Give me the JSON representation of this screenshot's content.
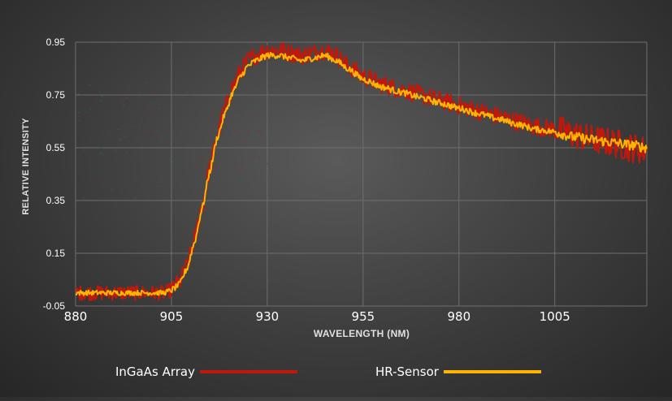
{
  "chart_data": {
    "type": "line",
    "xlabel": "WAVELENGTH (NM)",
    "ylabel": "RELATIVE INTENSITY",
    "xlim": [
      880,
      1029
    ],
    "ylim": [
      -0.05,
      0.95
    ],
    "x_ticks": [
      880,
      905,
      930,
      955,
      980,
      1005
    ],
    "y_ticks": [
      -0.05,
      0.15,
      0.35,
      0.55,
      0.75,
      0.95
    ],
    "y_tick_labels": [
      "-0.05",
      "0.15",
      "0.35",
      "0.55",
      "0.75",
      "0.95"
    ],
    "grid": true,
    "legend_position": "bottom",
    "series": [
      {
        "name": "InGaAs Array",
        "color": "#c0180c",
        "x": [
          880,
          885,
          890,
          895,
          900,
          903,
          905,
          907,
          909,
          911,
          913,
          915,
          917,
          919,
          921,
          923,
          925,
          927,
          930,
          933,
          936,
          939,
          942,
          945,
          948,
          951,
          955,
          960,
          965,
          970,
          975,
          980,
          985,
          990,
          995,
          1000,
          1005,
          1010,
          1015,
          1020,
          1025,
          1029
        ],
        "y": [
          0.0,
          0.0,
          0.0,
          0.0,
          0.0,
          0.0,
          0.01,
          0.04,
          0.1,
          0.2,
          0.33,
          0.47,
          0.6,
          0.7,
          0.78,
          0.84,
          0.88,
          0.9,
          0.92,
          0.92,
          0.91,
          0.9,
          0.91,
          0.92,
          0.9,
          0.86,
          0.82,
          0.79,
          0.77,
          0.75,
          0.73,
          0.71,
          0.69,
          0.67,
          0.65,
          0.63,
          0.62,
          0.6,
          0.58,
          0.57,
          0.55,
          0.54
        ]
      },
      {
        "name": "HR-Sensor",
        "color": "#ffb400",
        "x": [
          880,
          885,
          890,
          895,
          900,
          903,
          905,
          907,
          909,
          911,
          913,
          915,
          917,
          919,
          921,
          923,
          925,
          927,
          930,
          933,
          936,
          939,
          942,
          945,
          948,
          951,
          955,
          960,
          965,
          970,
          975,
          980,
          985,
          990,
          995,
          1000,
          1005,
          1010,
          1015,
          1020,
          1025,
          1029
        ],
        "y": [
          0.0,
          0.0,
          0.0,
          0.0,
          0.0,
          0.0,
          0.01,
          0.03,
          0.09,
          0.19,
          0.32,
          0.46,
          0.59,
          0.68,
          0.76,
          0.82,
          0.86,
          0.88,
          0.9,
          0.9,
          0.89,
          0.88,
          0.89,
          0.9,
          0.88,
          0.85,
          0.81,
          0.78,
          0.76,
          0.74,
          0.72,
          0.7,
          0.68,
          0.66,
          0.64,
          0.62,
          0.61,
          0.59,
          0.58,
          0.57,
          0.56,
          0.55
        ]
      }
    ]
  }
}
